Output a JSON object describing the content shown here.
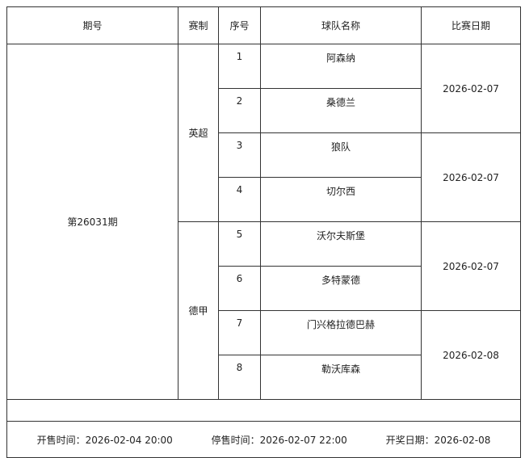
{
  "headers": [
    "期号",
    "赛制",
    "序号",
    "球队名称",
    "比赛日期"
  ],
  "issue": "第26031期",
  "leagues": [
    "英超",
    "德甲"
  ],
  "rows": [
    {
      "seq": "1",
      "team": "阿森纳"
    },
    {
      "seq": "2",
      "team": "桑德兰"
    },
    {
      "seq": "3",
      "team": "狼队"
    },
    {
      "seq": "4",
      "team": "切尔西"
    },
    {
      "seq": "5",
      "team": "沃尔夫斯堡"
    },
    {
      "seq": "6",
      "team": "多特蒙德"
    },
    {
      "seq": "7",
      "team": "门兴格拉德巴赫"
    },
    {
      "seq": "8",
      "team": "勒沃库森"
    }
  ],
  "dates": [
    "2026-02-07",
    "2026-02-07",
    "2026-02-07",
    "2026-02-08"
  ],
  "footer": {
    "sale_start": "开售时间：2026-02-04 20:00",
    "sale_stop": "停售时间：2026-02-07 22:00",
    "draw_date": "开奖日期：2026-02-08"
  }
}
